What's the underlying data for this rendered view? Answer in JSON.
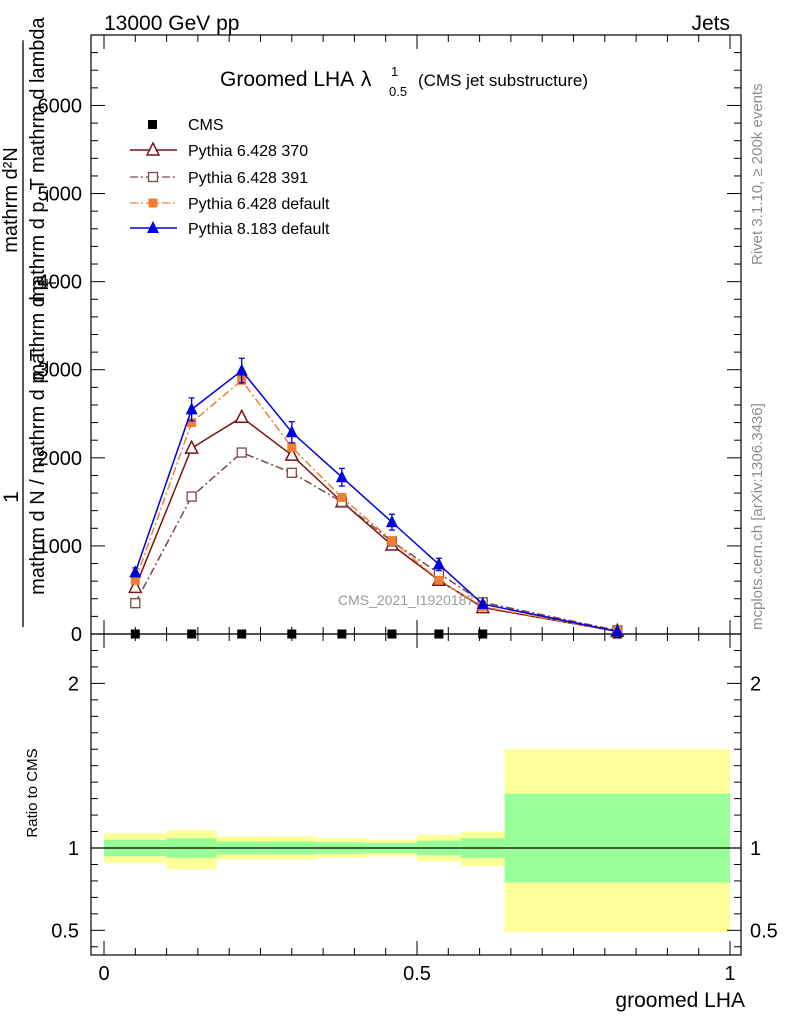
{
  "header": {
    "left": "13000 GeV pp",
    "right": "Jets"
  },
  "side_labels": {
    "rivet": "Rivet 3.1.10, ≥ 200k events",
    "mcplots": "mcplots.cern.ch [arXiv:1306.3436]"
  },
  "watermark": "CMS_2021_I1920187",
  "chart_data": [
    {
      "type": "line",
      "title": "Groomed LHA",
      "title_symbol": "λ",
      "title_sup": "1",
      "title_sub": "0.5",
      "subtitle": "(CMS jet substructure)",
      "ylabel_numerator": "1",
      "ylabel_denominator": "mathrm d N / mathrm d p_T",
      "ylabel_fraction_num": "mathrm d²N",
      "ylabel_fraction_den": "mathrm d p_T mathrm d lambda",
      "ylabel_overlap": "mathrm d p",
      "ylabel_overlap_sub": "T",
      "xlim": [
        0,
        1
      ],
      "ylim": [
        0,
        6800
      ],
      "yticks": [
        0,
        1000,
        2000,
        3000,
        4000,
        5000,
        6000
      ],
      "ytick_labels": [
        "0",
        "1000",
        "2000",
        "3000",
        "4000",
        "5000",
        "6000"
      ],
      "xbins": [
        [
          0,
          0.1
        ],
        [
          0.1,
          0.18
        ],
        [
          0.18,
          0.26
        ],
        [
          0.26,
          0.34
        ],
        [
          0.34,
          0.42
        ],
        [
          0.42,
          0.5
        ],
        [
          0.5,
          0.57
        ],
        [
          0.57,
          0.64
        ],
        [
          0.64,
          1.0
        ]
      ],
      "legend_position": "top-left",
      "series": [
        {
          "name": "CMS",
          "color": "#000000",
          "marker": "square-filled",
          "line": "none",
          "x": [
            0.05,
            0.14,
            0.22,
            0.3,
            0.38,
            0.46,
            0.535,
            0.605,
            0.82
          ],
          "values": [
            0,
            0,
            0,
            0,
            0,
            0,
            0,
            0,
            0
          ]
        },
        {
          "name": "Pythia 6.428 370",
          "color": "#7a1414",
          "marker": "triangle-open",
          "line": "solid",
          "x": [
            0.05,
            0.14,
            0.22,
            0.3,
            0.38,
            0.46,
            0.535,
            0.605,
            0.82
          ],
          "values": [
            530,
            2110,
            2460,
            2030,
            1500,
            1010,
            610,
            300,
            30
          ]
        },
        {
          "name": "Pythia 6.428 391",
          "color": "#7a4848",
          "marker": "square-open",
          "line": "dashdot",
          "x": [
            0.05,
            0.14,
            0.22,
            0.3,
            0.38,
            0.46,
            0.535,
            0.605,
            0.82
          ],
          "values": [
            350,
            1560,
            2060,
            1830,
            1500,
            1050,
            690,
            360,
            40
          ]
        },
        {
          "name": "Pythia 6.428 default",
          "color": "#f08030",
          "marker": "square-filled",
          "line": "dashdot",
          "x": [
            0.05,
            0.14,
            0.22,
            0.3,
            0.38,
            0.46,
            0.535,
            0.605,
            0.82
          ],
          "values": [
            610,
            2400,
            2880,
            2120,
            1550,
            1060,
            610,
            310,
            30
          ]
        },
        {
          "name": "Pythia 8.183 default",
          "color": "#0000dd",
          "marker": "triangle-filled",
          "line": "solid",
          "x": [
            0.05,
            0.14,
            0.22,
            0.3,
            0.38,
            0.46,
            0.535,
            0.605,
            0.82
          ],
          "values": [
            700,
            2550,
            2990,
            2290,
            1780,
            1270,
            790,
            340,
            30
          ],
          "errors": [
            50,
            130,
            140,
            120,
            100,
            90,
            70,
            30,
            10
          ]
        }
      ]
    },
    {
      "type": "area",
      "ylabel": "Ratio to CMS",
      "xlabel": "groomed LHA",
      "xlim": [
        0,
        1
      ],
      "ylim": [
        0.35,
        2.3
      ],
      "xticks": [
        0,
        0.5,
        1
      ],
      "xtick_labels": [
        "0",
        "0.5",
        "1"
      ],
      "yticks": [
        0.5,
        1,
        2
      ],
      "ytick_labels": [
        "0.5",
        "1",
        "2"
      ],
      "reference_line": 1,
      "bands": {
        "bins": [
          [
            0,
            0.1
          ],
          [
            0.1,
            0.18
          ],
          [
            0.18,
            0.26
          ],
          [
            0.26,
            0.34
          ],
          [
            0.34,
            0.42
          ],
          [
            0.42,
            0.5
          ],
          [
            0.5,
            0.57
          ],
          [
            0.57,
            0.64
          ],
          [
            0.64,
            1.0
          ]
        ],
        "stat_color": "#99ff99",
        "total_color": "#ffff99",
        "stat_low": [
          0.95,
          0.94,
          0.96,
          0.96,
          0.965,
          0.97,
          0.955,
          0.94,
          0.79
        ],
        "stat_high": [
          1.05,
          1.06,
          1.04,
          1.04,
          1.035,
          1.03,
          1.045,
          1.06,
          1.33
        ],
        "total_low": [
          0.91,
          0.87,
          0.93,
          0.93,
          0.94,
          0.95,
          0.92,
          0.89,
          0.49
        ],
        "total_high": [
          1.09,
          1.11,
          1.07,
          1.07,
          1.06,
          1.05,
          1.08,
          1.1,
          1.6
        ]
      }
    }
  ]
}
